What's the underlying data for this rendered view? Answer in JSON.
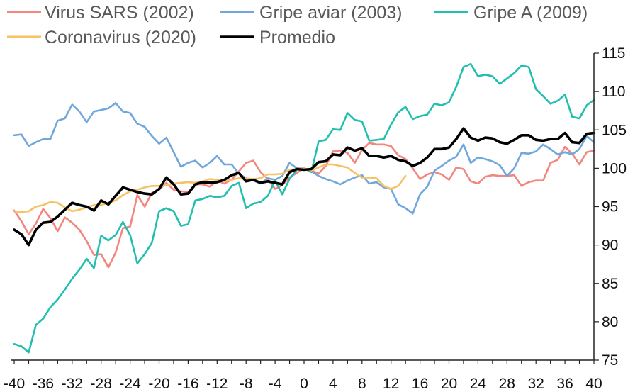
{
  "chart_data": {
    "type": "line",
    "title": "",
    "xlabel": "",
    "ylabel": "",
    "xlim": [
      -40,
      40
    ],
    "ylim": [
      75,
      115
    ],
    "y_axis_position": "right",
    "grid": false,
    "legend_position": "top",
    "x_ticks": [
      -40,
      -36,
      -32,
      -28,
      -24,
      -20,
      -16,
      -12,
      -8,
      -4,
      0,
      4,
      8,
      12,
      16,
      20,
      24,
      28,
      32,
      36,
      40
    ],
    "x_tick_labels": [
      "-40",
      "-36",
      "-32",
      "-28",
      "-24",
      "-20",
      "-16",
      "-12",
      "-8",
      "-4",
      "0",
      "4",
      "8",
      "12",
      "16",
      "20",
      "24",
      "28",
      "32",
      "36",
      "40"
    ],
    "y_ticks": [
      75,
      80,
      85,
      90,
      95,
      100,
      105,
      110,
      115
    ],
    "y_tick_labels": [
      "75",
      "80",
      "85",
      "90",
      "95",
      "100",
      "105",
      "110",
      "115"
    ],
    "x": [
      -40,
      -39,
      -38,
      -37,
      -36,
      -35,
      -34,
      -33,
      -32,
      -31,
      -30,
      -29,
      -28,
      -27,
      -26,
      -25,
      -24,
      -23,
      -22,
      -21,
      -20,
      -19,
      -18,
      -17,
      -16,
      -15,
      -14,
      -13,
      -12,
      -11,
      -10,
      -9,
      -8,
      -7,
      -6,
      -5,
      -4,
      -3,
      -2,
      -1,
      0,
      1,
      2,
      3,
      4,
      5,
      6,
      7,
      8,
      9,
      10,
      11,
      12,
      13,
      14,
      15,
      16,
      17,
      18,
      19,
      20,
      21,
      22,
      23,
      24,
      25,
      26,
      27,
      28,
      29,
      30,
      31,
      32,
      33,
      34,
      35,
      36,
      37,
      38,
      39,
      40
    ],
    "series": [
      {
        "name": "Virus SARS (2002)",
        "color": "#f2877f",
        "values": [
          94.5,
          93.1,
          91.4,
          92.8,
          94.7,
          93.5,
          91.8,
          93.6,
          92.9,
          92.0,
          90.5,
          88.7,
          88.8,
          87.1,
          89.0,
          92.2,
          92.4,
          96.5,
          95.0,
          96.8,
          97.2,
          98.1,
          97.2,
          97.0,
          96.9,
          97.9,
          97.9,
          97.6,
          98.4,
          98.0,
          98.5,
          99.6,
          100.7,
          101.0,
          99.5,
          98.6,
          97.3,
          97.8,
          98.8,
          99.4,
          100.0,
          99.7,
          99.3,
          100.3,
          102.2,
          102.3,
          102.0,
          100.7,
          102.4,
          103.3,
          103.1,
          103.1,
          102.9,
          101.7,
          101.2,
          100.0,
          98.6,
          99.2,
          99.5,
          99.2,
          98.5,
          100.1,
          99.9,
          98.3,
          98.0,
          98.9,
          99.1,
          99.0,
          99.0,
          99.1,
          97.7,
          98.2,
          98.4,
          98.4,
          100.7,
          101.1,
          102.8,
          101.9,
          100.5,
          102.1,
          102.3
        ]
      },
      {
        "name": "Gripe aviar (2003)",
        "color": "#70a7dd",
        "values": [
          104.3,
          104.4,
          102.9,
          103.4,
          103.8,
          103.8,
          106.2,
          106.5,
          108.3,
          107.4,
          106.0,
          107.4,
          107.6,
          107.8,
          108.5,
          107.4,
          107.2,
          105.8,
          105.4,
          104.2,
          103.2,
          104.0,
          102.1,
          100.2,
          100.7,
          101.0,
          100.1,
          100.7,
          101.6,
          100.5,
          100.5,
          99.3,
          98.7,
          98.4,
          98.0,
          98.7,
          98.5,
          99.0,
          100.7,
          100.0,
          100.0,
          99.6,
          99.0,
          98.6,
          98.3,
          97.9,
          98.4,
          98.8,
          99.1,
          98.0,
          98.2,
          97.5,
          97.3,
          95.3,
          94.8,
          94.1,
          96.6,
          97.6,
          99.7,
          100.3,
          101.0,
          101.5,
          103.1,
          100.7,
          101.4,
          101.2,
          100.9,
          100.4,
          99.0,
          100.0,
          102.0,
          101.9,
          102.2,
          103.1,
          102.5,
          101.8,
          102.1,
          101.8,
          102.5,
          104.2,
          103.4
        ]
      },
      {
        "name": "Gripe A (2009)",
        "color": "#22bfb0",
        "values": [
          77.1,
          76.8,
          76.0,
          79.6,
          80.4,
          81.9,
          82.9,
          84.2,
          85.6,
          86.8,
          88.2,
          87.0,
          91.2,
          90.6,
          91.3,
          93.0,
          91.3,
          87.6,
          88.8,
          90.3,
          94.4,
          94.8,
          94.4,
          92.5,
          92.7,
          95.8,
          96.0,
          96.4,
          96.2,
          96.4,
          97.7,
          98.1,
          94.8,
          95.4,
          95.6,
          96.4,
          98.4,
          96.6,
          98.6,
          99.8,
          100.0,
          99.5,
          103.5,
          103.7,
          105.1,
          105.0,
          107.2,
          106.3,
          106.1,
          103.6,
          103.7,
          103.8,
          105.7,
          107.3,
          108.0,
          106.4,
          106.8,
          107.0,
          108.4,
          108.2,
          108.6,
          110.6,
          113.2,
          113.6,
          112.0,
          112.2,
          112.0,
          111.0,
          111.7,
          112.4,
          113.4,
          113.2,
          110.3,
          109.4,
          108.4,
          108.8,
          109.6,
          106.7,
          106.5,
          108.2,
          108.9
        ]
      },
      {
        "name": "Coronavirus (2020)",
        "color": "#f7c266",
        "x": [
          -40,
          -39,
          -38,
          -37,
          -36,
          -35,
          -34,
          -33,
          -32,
          -31,
          -30,
          -29,
          -28,
          -27,
          -26,
          -25,
          -24,
          -23,
          -22,
          -21,
          -20,
          -19,
          -18,
          -17,
          -16,
          -15,
          -14,
          -13,
          -12,
          -11,
          -10,
          -9,
          -8,
          -7,
          -6,
          -5,
          -4,
          -3,
          -2,
          -1,
          0,
          1,
          2,
          3,
          4,
          5,
          6,
          7,
          8,
          9,
          10,
          11,
          12,
          13,
          14
        ],
        "values": [
          94.4,
          94.3,
          94.4,
          95.0,
          95.2,
          95.6,
          95.5,
          94.9,
          94.4,
          94.6,
          94.9,
          95.2,
          95.2,
          95.5,
          95.8,
          96.5,
          97.0,
          97.2,
          97.5,
          97.7,
          97.7,
          97.8,
          98.0,
          98.1,
          98.2,
          98.1,
          98.3,
          98.6,
          98.5,
          98.3,
          98.5,
          98.7,
          98.7,
          98.6,
          98.7,
          99.2,
          99.2,
          99.3,
          99.8,
          99.9,
          100.0,
          99.7,
          100.1,
          100.5,
          100.5,
          100.3,
          100.1,
          99.4,
          98.8,
          98.8,
          98.7,
          97.7,
          97.3,
          97.7,
          99.0
        ]
      },
      {
        "name": "Promedio",
        "color": "#000000",
        "values": [
          92.0,
          91.4,
          90.0,
          92.0,
          92.9,
          93.0,
          93.7,
          94.6,
          95.5,
          95.2,
          95.0,
          94.5,
          95.8,
          95.3,
          96.4,
          97.5,
          97.2,
          96.9,
          96.7,
          96.6,
          97.3,
          98.8,
          97.9,
          96.6,
          96.7,
          97.9,
          98.2,
          98.1,
          98.2,
          98.5,
          99.1,
          99.4,
          98.3,
          98.5,
          98.1,
          98.3,
          98.1,
          97.9,
          99.5,
          99.9,
          99.8,
          99.9,
          100.8,
          100.9,
          101.8,
          101.7,
          102.7,
          102.3,
          102.6,
          101.6,
          101.6,
          101.4,
          101.6,
          101.1,
          100.9,
          100.3,
          100.7,
          101.4,
          102.5,
          102.5,
          102.7,
          103.8,
          105.2,
          104.0,
          103.6,
          104.0,
          103.9,
          103.4,
          103.2,
          103.7,
          104.3,
          104.3,
          103.7,
          103.6,
          103.8,
          103.8,
          104.6,
          103.4,
          103.3,
          104.5,
          104.6
        ]
      }
    ]
  }
}
